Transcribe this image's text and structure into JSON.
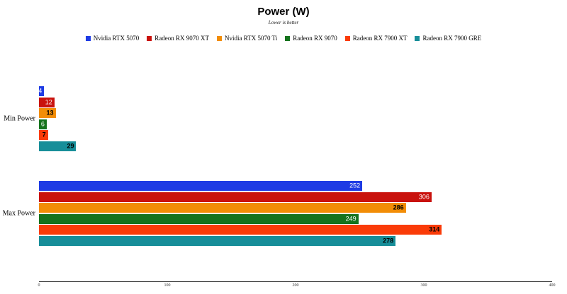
{
  "header": {
    "title": "Power (W)",
    "subtitle": "Lower is better"
  },
  "chart_data": {
    "type": "bar",
    "orientation": "horizontal",
    "title": "Power (W)",
    "subtitle": "Lower is better",
    "categories": [
      "Min Power",
      "Max Power"
    ],
    "series": [
      {
        "name": "Nvidia RTX 5070",
        "color": "#1e3be4",
        "label_color": "#ffffff",
        "label_bold": false,
        "values": [
          4,
          252
        ]
      },
      {
        "name": "Radeon RX 9070 XT",
        "color": "#c9120d",
        "label_color": "#ffffff",
        "label_bold": false,
        "values": [
          12,
          306
        ]
      },
      {
        "name": "Nvidia RTX 5070 Ti",
        "color": "#f28d06",
        "label_color": "#000000",
        "label_bold": true,
        "values": [
          13,
          286
        ]
      },
      {
        "name": "Radeon RX 9070",
        "color": "#15731d",
        "label_color": "#ffffff",
        "label_bold": false,
        "values": [
          6,
          249
        ]
      },
      {
        "name": "Radeon RX 7900 XT",
        "color": "#fa3b08",
        "label_color": "#000000",
        "label_bold": true,
        "values": [
          7,
          314
        ]
      },
      {
        "name": "Radeon RX 7900 GRE",
        "color": "#178e99",
        "label_color": "#000000",
        "label_bold": true,
        "values": [
          29,
          278
        ]
      }
    ],
    "xlabel": "",
    "ylabel": "",
    "xlim": [
      0,
      400
    ],
    "x_ticks": [
      "0",
      "100",
      "200",
      "300",
      "400"
    ],
    "legend_position": "top-center",
    "grid": false,
    "value_labels": "inside-end"
  }
}
